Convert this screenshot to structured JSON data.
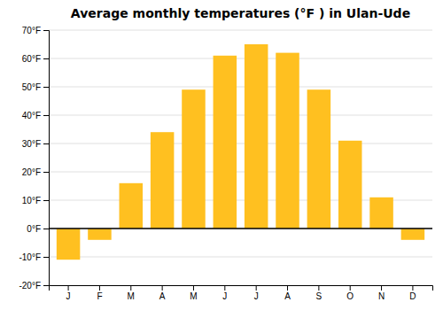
{
  "chart_data": {
    "type": "bar",
    "title": "Average monthly temperatures (°F ) in Ulan-Ude",
    "categories": [
      "J",
      "F",
      "M",
      "A",
      "M",
      "J",
      "J",
      "A",
      "S",
      "O",
      "N",
      "D"
    ],
    "values": [
      -11,
      -4,
      16,
      34,
      49,
      61,
      65,
      62,
      49,
      31,
      11,
      -4
    ],
    "color": "#FFC020",
    "ylim": [
      -20,
      70
    ],
    "yticks": [
      {
        "value": -20,
        "label": "-20°F"
      },
      {
        "value": -10,
        "label": "-10°F"
      },
      {
        "value": 0,
        "label": "0°F"
      },
      {
        "value": 10,
        "label": "10°F"
      },
      {
        "value": 20,
        "label": "20°F"
      },
      {
        "value": 30,
        "label": "30°F"
      },
      {
        "value": 40,
        "label": "40°F"
      },
      {
        "value": 50,
        "label": "50°F"
      },
      {
        "value": 60,
        "label": "60°F"
      },
      {
        "value": 70,
        "label": "70°F"
      }
    ],
    "grid": true
  }
}
